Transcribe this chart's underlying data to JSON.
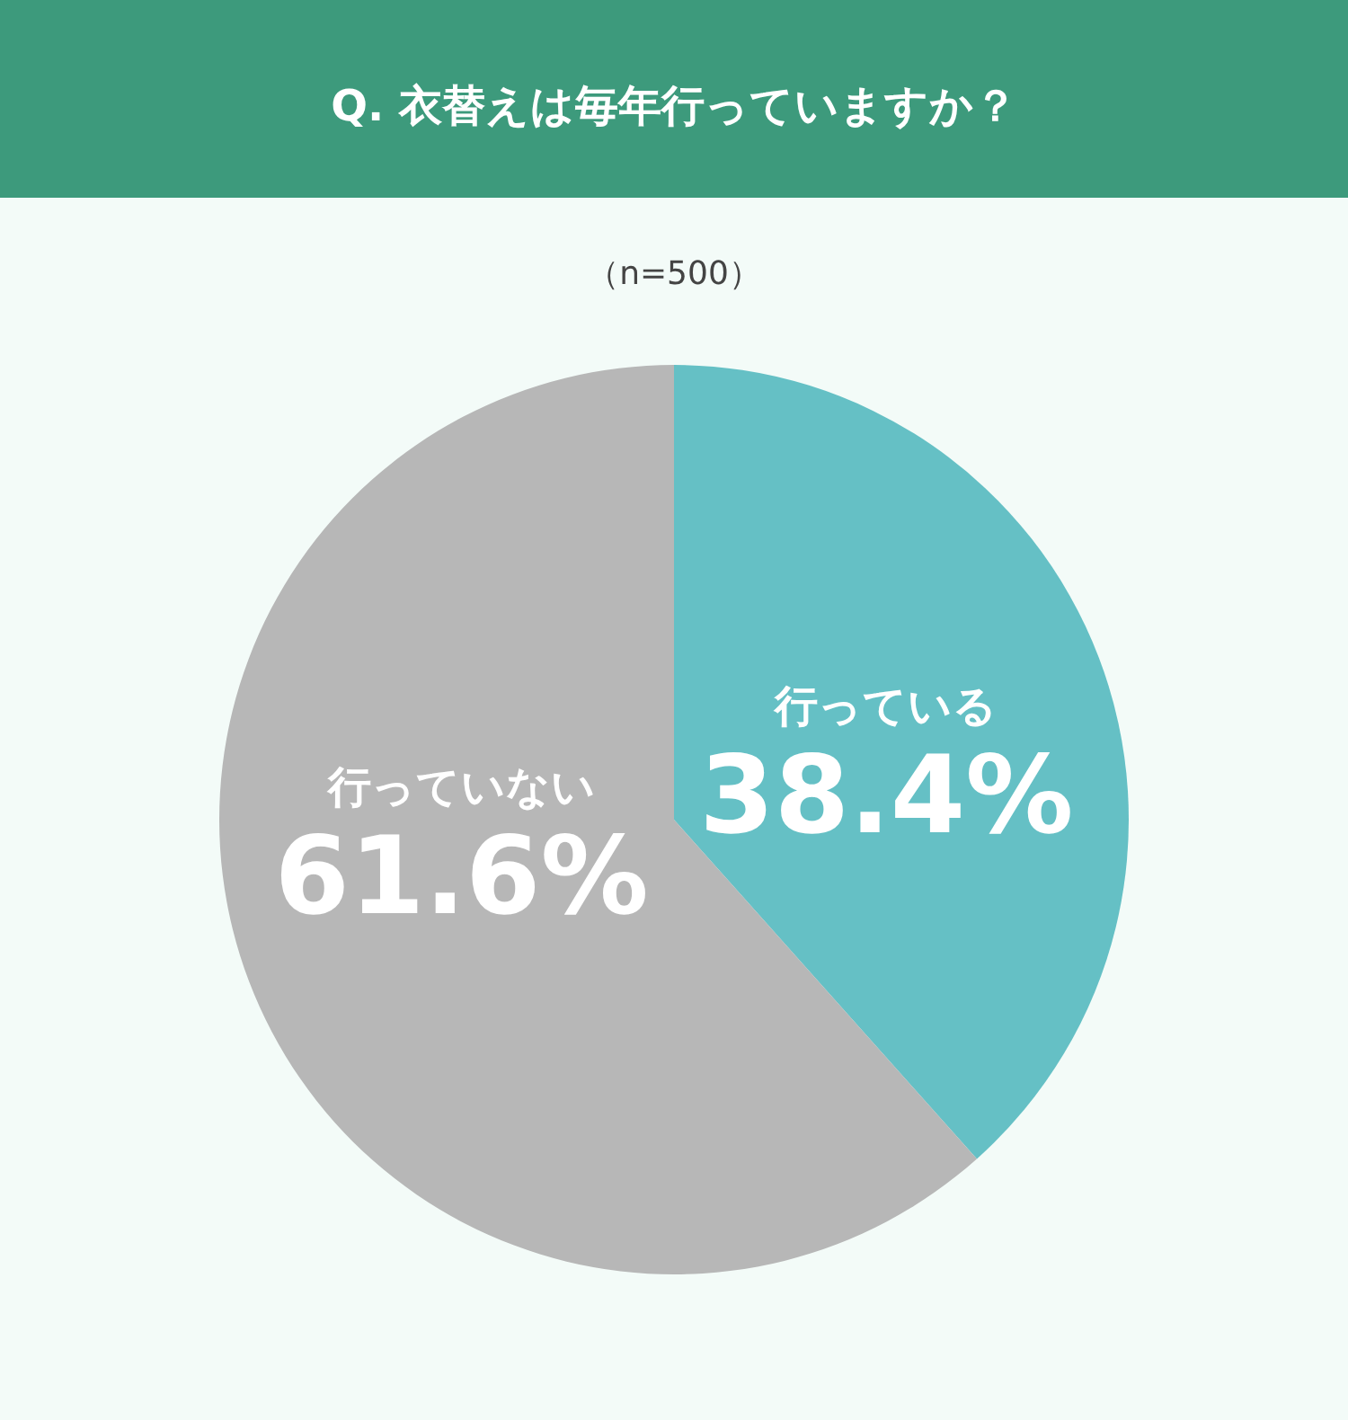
{
  "chart_data": {
    "type": "pie",
    "title": "Q. 衣替えは毎年行っていますか？",
    "subtitle": "（n=500）",
    "categories": [
      "行っている",
      "行っていない"
    ],
    "values": [
      38.4,
      61.6
    ],
    "colors": [
      "#65c0c5",
      "#b7b7b7"
    ],
    "value_labels": [
      "38.4%",
      "61.6%"
    ]
  }
}
